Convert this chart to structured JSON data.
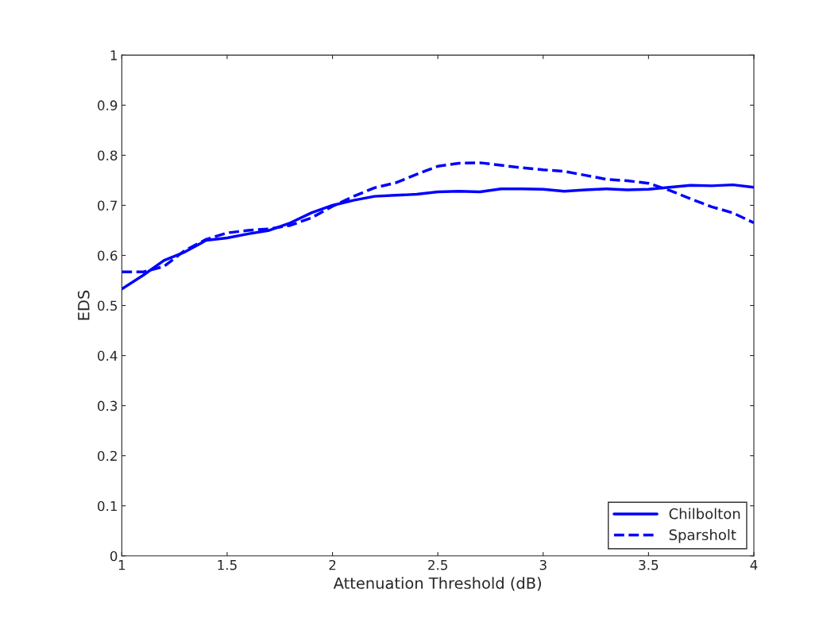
{
  "chart_data": {
    "type": "line",
    "xlabel": "Attenuation Threshold (dB)",
    "ylabel": "EDS",
    "x": [
      1.0,
      1.1,
      1.2,
      1.3,
      1.4,
      1.5,
      1.6,
      1.7,
      1.8,
      1.9,
      2.0,
      2.1,
      2.2,
      2.3,
      2.4,
      2.5,
      2.6,
      2.7,
      2.8,
      2.9,
      3.0,
      3.1,
      3.2,
      3.3,
      3.4,
      3.5,
      3.6,
      3.7,
      3.8,
      3.9,
      4.0
    ],
    "series": [
      {
        "name": "Chilbolton",
        "color": "#0000ff",
        "line_style": "solid",
        "values": [
          0.533,
          0.56,
          0.59,
          0.607,
          0.63,
          0.635,
          0.643,
          0.65,
          0.665,
          0.685,
          0.7,
          0.71,
          0.718,
          0.72,
          0.722,
          0.727,
          0.728,
          0.727,
          0.733,
          0.733,
          0.732,
          0.728,
          0.731,
          0.733,
          0.731,
          0.732,
          0.736,
          0.74,
          0.739,
          0.741,
          0.736
        ]
      },
      {
        "name": "Sparsholt",
        "color": "#0000ff",
        "line_style": "dashed",
        "values": [
          0.567,
          0.567,
          0.578,
          0.61,
          0.632,
          0.645,
          0.65,
          0.653,
          0.66,
          0.675,
          0.698,
          0.718,
          0.735,
          0.745,
          0.762,
          0.778,
          0.784,
          0.785,
          0.78,
          0.775,
          0.771,
          0.768,
          0.76,
          0.752,
          0.749,
          0.744,
          0.73,
          0.713,
          0.697,
          0.685,
          0.665
        ]
      }
    ],
    "xlim": [
      1,
      4
    ],
    "ylim": [
      0,
      1
    ],
    "xticks": [
      1,
      1.5,
      2,
      2.5,
      3,
      3.5,
      4
    ],
    "yticks": [
      0,
      0.1,
      0.2,
      0.3,
      0.4,
      0.5,
      0.6,
      0.7,
      0.8,
      0.9,
      1
    ],
    "grid": false,
    "legend": "bottom right"
  }
}
